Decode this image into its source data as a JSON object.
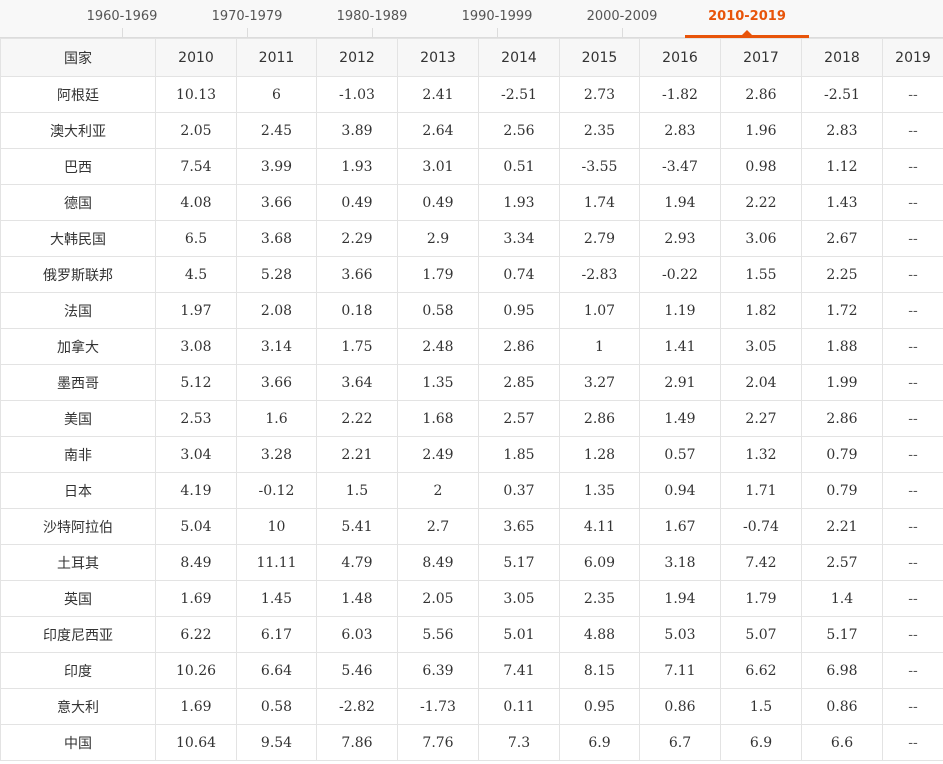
{
  "tabs": [
    {
      "label": "1960-1969",
      "active": false
    },
    {
      "label": "1970-1979",
      "active": false
    },
    {
      "label": "1980-1989",
      "active": false
    },
    {
      "label": "1990-1999",
      "active": false
    },
    {
      "label": "2000-2009",
      "active": false
    },
    {
      "label": "2010-2019",
      "active": true
    }
  ],
  "accent_color": "#e8540a",
  "table": {
    "headers": [
      "国家",
      "2010",
      "2011",
      "2012",
      "2013",
      "2014",
      "2015",
      "2016",
      "2017",
      "2018",
      "2019"
    ],
    "rows": [
      [
        "阿根廷",
        "10.13",
        "6",
        "-1.03",
        "2.41",
        "-2.51",
        "2.73",
        "-1.82",
        "2.86",
        "-2.51",
        "--"
      ],
      [
        "澳大利亚",
        "2.05",
        "2.45",
        "3.89",
        "2.64",
        "2.56",
        "2.35",
        "2.83",
        "1.96",
        "2.83",
        "--"
      ],
      [
        "巴西",
        "7.54",
        "3.99",
        "1.93",
        "3.01",
        "0.51",
        "-3.55",
        "-3.47",
        "0.98",
        "1.12",
        "--"
      ],
      [
        "德国",
        "4.08",
        "3.66",
        "0.49",
        "0.49",
        "1.93",
        "1.74",
        "1.94",
        "2.22",
        "1.43",
        "--"
      ],
      [
        "大韩民国",
        "6.5",
        "3.68",
        "2.29",
        "2.9",
        "3.34",
        "2.79",
        "2.93",
        "3.06",
        "2.67",
        "--"
      ],
      [
        "俄罗斯联邦",
        "4.5",
        "5.28",
        "3.66",
        "1.79",
        "0.74",
        "-2.83",
        "-0.22",
        "1.55",
        "2.25",
        "--"
      ],
      [
        "法国",
        "1.97",
        "2.08",
        "0.18",
        "0.58",
        "0.95",
        "1.07",
        "1.19",
        "1.82",
        "1.72",
        "--"
      ],
      [
        "加拿大",
        "3.08",
        "3.14",
        "1.75",
        "2.48",
        "2.86",
        "1",
        "1.41",
        "3.05",
        "1.88",
        "--"
      ],
      [
        "墨西哥",
        "5.12",
        "3.66",
        "3.64",
        "1.35",
        "2.85",
        "3.27",
        "2.91",
        "2.04",
        "1.99",
        "--"
      ],
      [
        "美国",
        "2.53",
        "1.6",
        "2.22",
        "1.68",
        "2.57",
        "2.86",
        "1.49",
        "2.27",
        "2.86",
        "--"
      ],
      [
        "南非",
        "3.04",
        "3.28",
        "2.21",
        "2.49",
        "1.85",
        "1.28",
        "0.57",
        "1.32",
        "0.79",
        "--"
      ],
      [
        "日本",
        "4.19",
        "-0.12",
        "1.5",
        "2",
        "0.37",
        "1.35",
        "0.94",
        "1.71",
        "0.79",
        "--"
      ],
      [
        "沙特阿拉伯",
        "5.04",
        "10",
        "5.41",
        "2.7",
        "3.65",
        "4.11",
        "1.67",
        "-0.74",
        "2.21",
        "--"
      ],
      [
        "土耳其",
        "8.49",
        "11.11",
        "4.79",
        "8.49",
        "5.17",
        "6.09",
        "3.18",
        "7.42",
        "2.57",
        "--"
      ],
      [
        "英国",
        "1.69",
        "1.45",
        "1.48",
        "2.05",
        "3.05",
        "2.35",
        "1.94",
        "1.79",
        "1.4",
        "--"
      ],
      [
        "印度尼西亚",
        "6.22",
        "6.17",
        "6.03",
        "5.56",
        "5.01",
        "4.88",
        "5.03",
        "5.07",
        "5.17",
        "--"
      ],
      [
        "印度",
        "10.26",
        "6.64",
        "5.46",
        "6.39",
        "7.41",
        "8.15",
        "7.11",
        "6.62",
        "6.98",
        "--"
      ],
      [
        "意大利",
        "1.69",
        "0.58",
        "-2.82",
        "-1.73",
        "0.11",
        "0.95",
        "0.86",
        "1.5",
        "0.86",
        "--"
      ],
      [
        "中国",
        "10.64",
        "9.54",
        "7.86",
        "7.76",
        "7.3",
        "6.9",
        "6.7",
        "6.9",
        "6.6",
        "--"
      ]
    ]
  }
}
